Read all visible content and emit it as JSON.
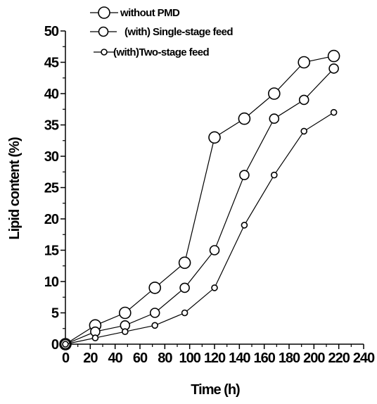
{
  "chart_data": {
    "type": "line",
    "title": "",
    "xlabel": "Time (h)",
    "ylabel": "Lipid content (%)",
    "xlim": [
      0,
      240
    ],
    "ylim": [
      0,
      50
    ],
    "x_ticks": [
      0,
      20,
      40,
      60,
      80,
      100,
      120,
      140,
      160,
      180,
      200,
      220,
      240
    ],
    "y_ticks": [
      0,
      5,
      10,
      15,
      20,
      25,
      30,
      35,
      40,
      45,
      50
    ],
    "grid": false,
    "legend_position": "top-left",
    "series": [
      {
        "name": "without PMD",
        "marker": "large-open-circle",
        "x": [
          0,
          24,
          48,
          72,
          96,
          120,
          144,
          168,
          192,
          216
        ],
        "y": [
          0,
          3,
          5,
          9,
          13,
          33,
          36,
          40,
          45,
          46
        ]
      },
      {
        "name": "(with) Single-stage feed",
        "marker": "medium-open-circle",
        "x": [
          0,
          24,
          48,
          72,
          96,
          120,
          144,
          168,
          192,
          216
        ],
        "y": [
          0,
          2,
          3,
          5,
          9,
          15,
          27,
          36,
          39,
          44
        ]
      },
      {
        "name": "(with)Two-stage feed",
        "marker": "small-open-circle",
        "x": [
          0,
          24,
          48,
          72,
          96,
          120,
          144,
          168,
          192,
          216
        ],
        "y": [
          0,
          1,
          2,
          3,
          5,
          9,
          19,
          27,
          34,
          37
        ]
      }
    ],
    "colors": {
      "line": "#000000",
      "marker_fill": "#ffffff",
      "marker_stroke": "#000000"
    }
  }
}
